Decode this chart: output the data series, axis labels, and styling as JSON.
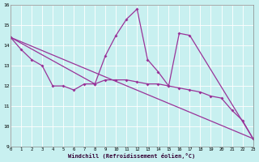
{
  "xlabel": "Windchill (Refroidissement éolien,°C)",
  "bg_color": "#c8f0f0",
  "line_color": "#993399",
  "grid_color": "#ffffff",
  "xlim": [
    0,
    23
  ],
  "ylim": [
    9,
    16
  ],
  "series_zigzag": {
    "x": [
      0,
      8,
      9,
      10,
      11,
      12,
      13,
      14,
      15,
      16,
      17,
      23
    ],
    "y": [
      14.4,
      12.1,
      13.5,
      14.5,
      15.3,
      15.8,
      13.3,
      12.7,
      12.0,
      14.6,
      14.5,
      9.4
    ]
  },
  "series_flat": {
    "x": [
      0,
      1,
      2,
      3,
      4,
      5,
      6,
      7,
      8,
      9,
      10,
      11,
      12,
      13,
      14,
      15,
      16,
      17,
      18,
      19,
      20,
      21,
      22,
      23
    ],
    "y": [
      14.4,
      13.8,
      13.3,
      13.0,
      12.0,
      12.0,
      11.8,
      12.1,
      12.1,
      12.3,
      12.3,
      12.3,
      12.2,
      12.1,
      12.1,
      12.0,
      11.9,
      11.8,
      11.7,
      11.5,
      11.4,
      10.8,
      10.3,
      9.4
    ]
  },
  "series_diagonal": {
    "x": [
      0,
      23
    ],
    "y": [
      14.4,
      9.4
    ]
  }
}
